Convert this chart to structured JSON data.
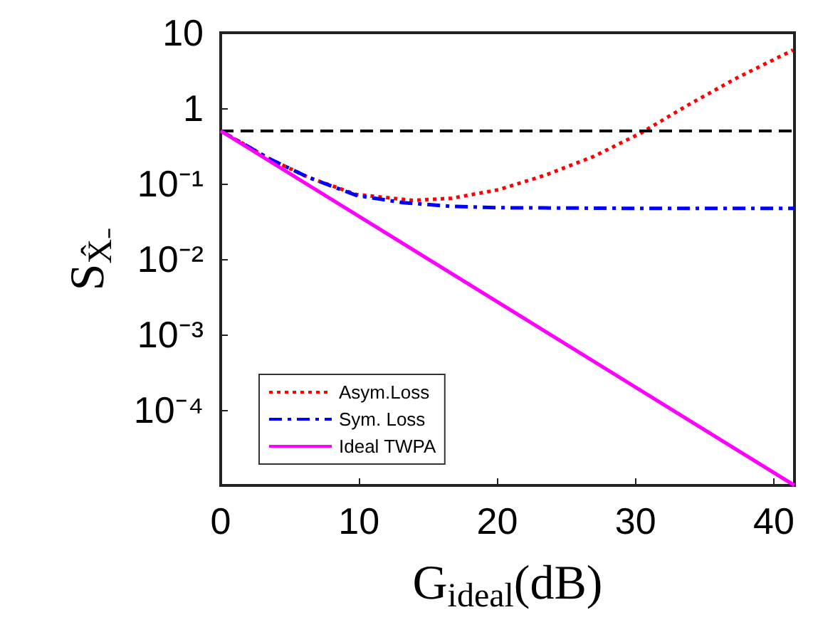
{
  "chart_data": {
    "type": "line",
    "xlabel": "G$_{ideal}$(dB)",
    "ylabel": "S$_{X̂₋}$",
    "log": "y",
    "xlim": [
      0,
      41.5
    ],
    "xticks": [
      0,
      10,
      20,
      30,
      40
    ],
    "ylim": [
      1e-05,
      10
    ],
    "yticks": [
      {
        "value": 1e-05,
        "label": null
      },
      {
        "value": 0.0001,
        "label": "10⁻⁴"
      },
      {
        "value": 0.001,
        "label": "10⁻³"
      },
      {
        "value": 0.01,
        "label": "10⁻²"
      },
      {
        "value": 0.1,
        "label": "10⁻¹"
      },
      1,
      10
    ],
    "grid": false,
    "legend": "bottom left",
    "marker": "none",
    "ref_lines": [
      {
        "axis": "y",
        "value": 0.5,
        "color": "#000000",
        "line_style": "dashed"
      }
    ],
    "series": [
      {
        "name": "Asym.Loss",
        "color": "#ff0000",
        "line_style": "dotted",
        "x": [
          0,
          3.6,
          6.4,
          9.8,
          13.9,
          16.7,
          20.1,
          23.5,
          27,
          30.4,
          33.8,
          37.3,
          41.4
        ],
        "values": [
          0.5,
          0.21,
          0.12,
          0.072,
          0.06,
          0.064,
          0.083,
          0.13,
          0.23,
          0.47,
          1.1,
          2.5,
          5.9
        ]
      },
      {
        "name": "Sym. Loss",
        "color": "#0000ff",
        "line_style": "dashdot",
        "x": [
          0,
          3.6,
          6.4,
          9.8,
          13.2,
          16.7,
          20,
          30,
          41.5
        ],
        "values": [
          0.5,
          0.21,
          0.12,
          0.07,
          0.056,
          0.05,
          0.048,
          0.047,
          0.047
        ]
      },
      {
        "name": "Ideal TWPA",
        "color": "#ff00ff",
        "line_style": "solid",
        "x": [
          0,
          41.5
        ],
        "values": [
          0.5,
          1e-05
        ]
      }
    ]
  }
}
